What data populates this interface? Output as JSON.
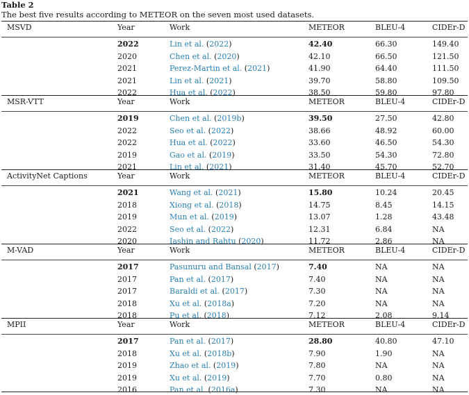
{
  "caption": {
    "label": "Table 2",
    "text": "The best five results according to METEOR on the seven most used datasets."
  },
  "header": {
    "year": "Year",
    "work": "Work",
    "meteor": "METEOR",
    "bleu4": "BLEU-4",
    "cider": "CIDEr-D"
  },
  "sections": [
    {
      "dataset": "MSVD",
      "rows": [
        {
          "year": "2022",
          "author": "Lin et al.",
          "cite_year": "2022",
          "meteor": "42.40",
          "bleu4": "66.30",
          "cider": "149.40",
          "best": true
        },
        {
          "year": "2020",
          "author": "Chen et al.",
          "cite_year": "2020",
          "meteor": "42.10",
          "bleu4": "66.50",
          "cider": "121.50",
          "best": false
        },
        {
          "year": "2021",
          "author": "Perez-Martin et al.",
          "cite_year": "2021",
          "meteor": "41.90",
          "bleu4": "64.40",
          "cider": "111.50",
          "best": false
        },
        {
          "year": "2021",
          "author": "Lin et al.",
          "cite_year": "2021",
          "meteor": "39.70",
          "bleu4": "58.80",
          "cider": "109.50",
          "best": false
        },
        {
          "year": "2022",
          "author": "Hua et al.",
          "cite_year": "2022",
          "meteor": "38.50",
          "bleu4": "59.80",
          "cider": "97.80",
          "best": false
        }
      ]
    },
    {
      "dataset": "MSR-VTT",
      "rows": [
        {
          "year": "2019",
          "author": "Chen et al.",
          "cite_year": "2019b",
          "meteor": "39.50",
          "bleu4": "27.50",
          "cider": "42.80",
          "best": true
        },
        {
          "year": "2022",
          "author": "Seo et al.",
          "cite_year": "2022",
          "meteor": "38.66",
          "bleu4": "48.92",
          "cider": "60.00",
          "best": false
        },
        {
          "year": "2022",
          "author": "Hua et al.",
          "cite_year": "2022",
          "meteor": "33.60",
          "bleu4": "46.50",
          "cider": "54.30",
          "best": false
        },
        {
          "year": "2019",
          "author": "Gao et al.",
          "cite_year": "2019",
          "meteor": "33.50",
          "bleu4": "54.30",
          "cider": "72.80",
          "best": false
        },
        {
          "year": "2021",
          "author": "Lin et al.",
          "cite_year": "2021",
          "meteor": "31.40",
          "bleu4": "45.70",
          "cider": "52.70",
          "best": false
        }
      ]
    },
    {
      "dataset": "ActivityNet Captions",
      "rows": [
        {
          "year": "2021",
          "author": "Wang et al.",
          "cite_year": "2021",
          "meteor": "15.80",
          "bleu4": "10.24",
          "cider": "20.45",
          "best": true
        },
        {
          "year": "2018",
          "author": "Xiong et al.",
          "cite_year": "2018",
          "meteor": "14.75",
          "bleu4": "8.45",
          "cider": "14.15",
          "best": false
        },
        {
          "year": "2019",
          "author": "Mun et al.",
          "cite_year": "2019",
          "meteor": "13.07",
          "bleu4": "1.28",
          "cider": "43.48",
          "best": false
        },
        {
          "year": "2022",
          "author": "Seo et al.",
          "cite_year": "2022",
          "meteor": "12.31",
          "bleu4": "6.84",
          "cider": "NA",
          "best": false
        },
        {
          "year": "2020",
          "author": "Iashin and Rahtu",
          "cite_year": "2020",
          "meteor": "11.72",
          "bleu4": "2.86",
          "cider": "NA",
          "best": false
        }
      ]
    },
    {
      "dataset": "M-VAD",
      "rows": [
        {
          "year": "2017",
          "author": "Pasunuru and Bansal",
          "cite_year": "2017",
          "meteor": "7.40",
          "bleu4": "NA",
          "cider": "NA",
          "best": true
        },
        {
          "year": "2017",
          "author": "Pan et al.",
          "cite_year": "2017",
          "meteor": "7.40",
          "bleu4": "NA",
          "cider": "NA",
          "best": false
        },
        {
          "year": "2017",
          "author": "Baraldi et al.",
          "cite_year": "2017",
          "meteor": "7.30",
          "bleu4": "NA",
          "cider": "NA",
          "best": false
        },
        {
          "year": "2018",
          "author": "Xu et al.",
          "cite_year": "2018a",
          "meteor": "7.20",
          "bleu4": "NA",
          "cider": "NA",
          "best": false
        },
        {
          "year": "2018",
          "author": "Pu et al.",
          "cite_year": "2018",
          "meteor": "7.12",
          "bleu4": "2.08",
          "cider": "9.14",
          "best": false
        }
      ]
    },
    {
      "dataset": "MPII",
      "rows": [
        {
          "year": "2017",
          "author": "Pan et al.",
          "cite_year": "2017",
          "meteor": "28.80",
          "bleu4": "40.80",
          "cider": "47.10",
          "best": true
        },
        {
          "year": "2018",
          "author": "Xu et al.",
          "cite_year": "2018b",
          "meteor": "7.90",
          "bleu4": "1.90",
          "cider": "NA",
          "best": false
        },
        {
          "year": "2019",
          "author": "Zhao et al.",
          "cite_year": "2019",
          "meteor": "7.80",
          "bleu4": "NA",
          "cider": "NA",
          "best": false
        },
        {
          "year": "2019",
          "author": "Xu et al.",
          "cite_year": "2019",
          "meteor": "7.70",
          "bleu4": "0.80",
          "cider": "NA",
          "best": false
        },
        {
          "year": "2016",
          "author": "Pan et al.",
          "cite_year": "2016a",
          "meteor": "7.30",
          "bleu4": "NA",
          "cider": "NA",
          "best": false
        }
      ]
    }
  ]
}
